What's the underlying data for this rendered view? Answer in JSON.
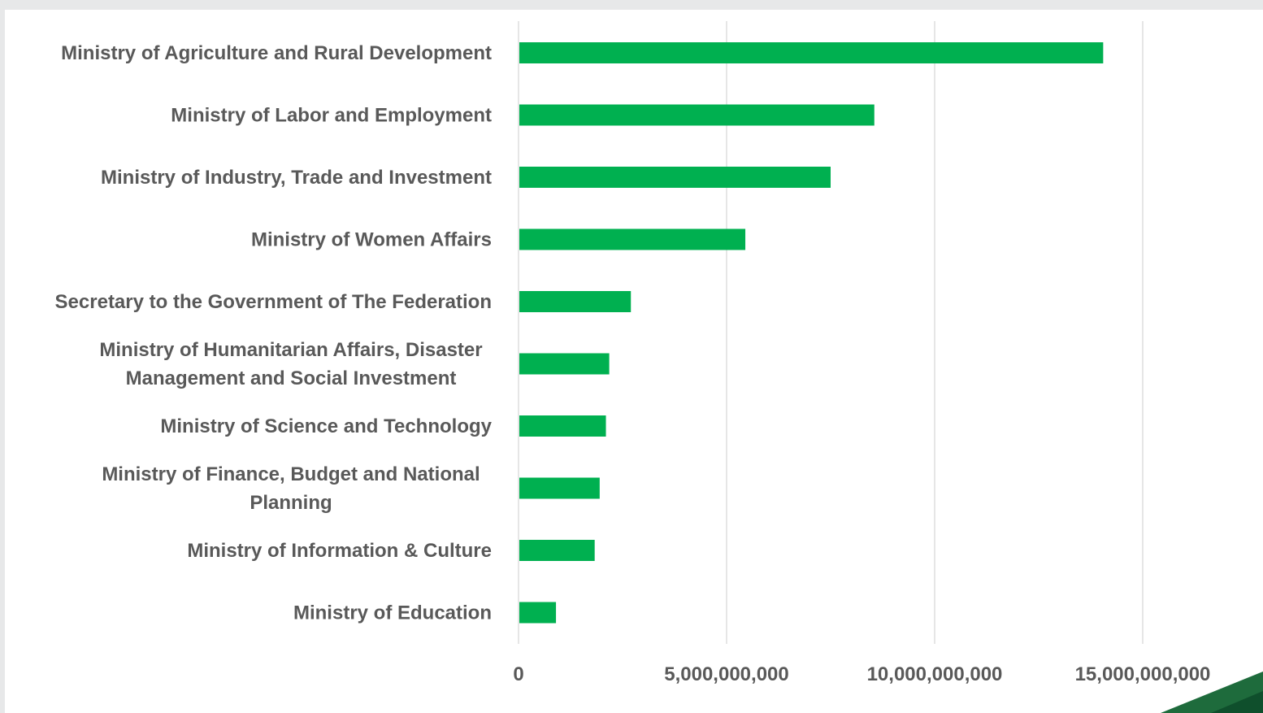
{
  "chart_data": {
    "type": "bar",
    "orientation": "horizontal",
    "title": "",
    "xlabel": "",
    "ylabel": "",
    "bar_color": "#00b050",
    "grid": true,
    "legend": "none",
    "xlim": [
      0,
      17000000000
    ],
    "x_ticks": [
      0,
      5000000000,
      10000000000,
      15000000000
    ],
    "x_tick_labels": [
      "0",
      "5,000,000,000",
      "10,000,000,000",
      "15,000,000,000"
    ],
    "categories": [
      [
        "Ministry of Agriculture and Rural Development"
      ],
      [
        "Ministry of Labor and Employment"
      ],
      [
        "Ministry of Industry, Trade and Investment"
      ],
      [
        "Ministry of Women Affairs"
      ],
      [
        "Secretary to the Government of The Federation"
      ],
      [
        "Ministry of Humanitarian Affairs, Disaster",
        "Management and Social Investment"
      ],
      [
        "Ministry of Science and Technology"
      ],
      [
        "Ministry of Finance, Budget and National",
        "Planning"
      ],
      [
        "Ministry of Information & Culture"
      ],
      [
        "Ministry of Education"
      ]
    ],
    "values": [
      14050000000,
      8550000000,
      7500000000,
      5450000000,
      2700000000,
      2180000000,
      2100000000,
      1950000000,
      1830000000,
      900000000
    ]
  },
  "decoration": {
    "accent_color": "#1e6b3c",
    "accent_dark": "#0f4f2c"
  }
}
